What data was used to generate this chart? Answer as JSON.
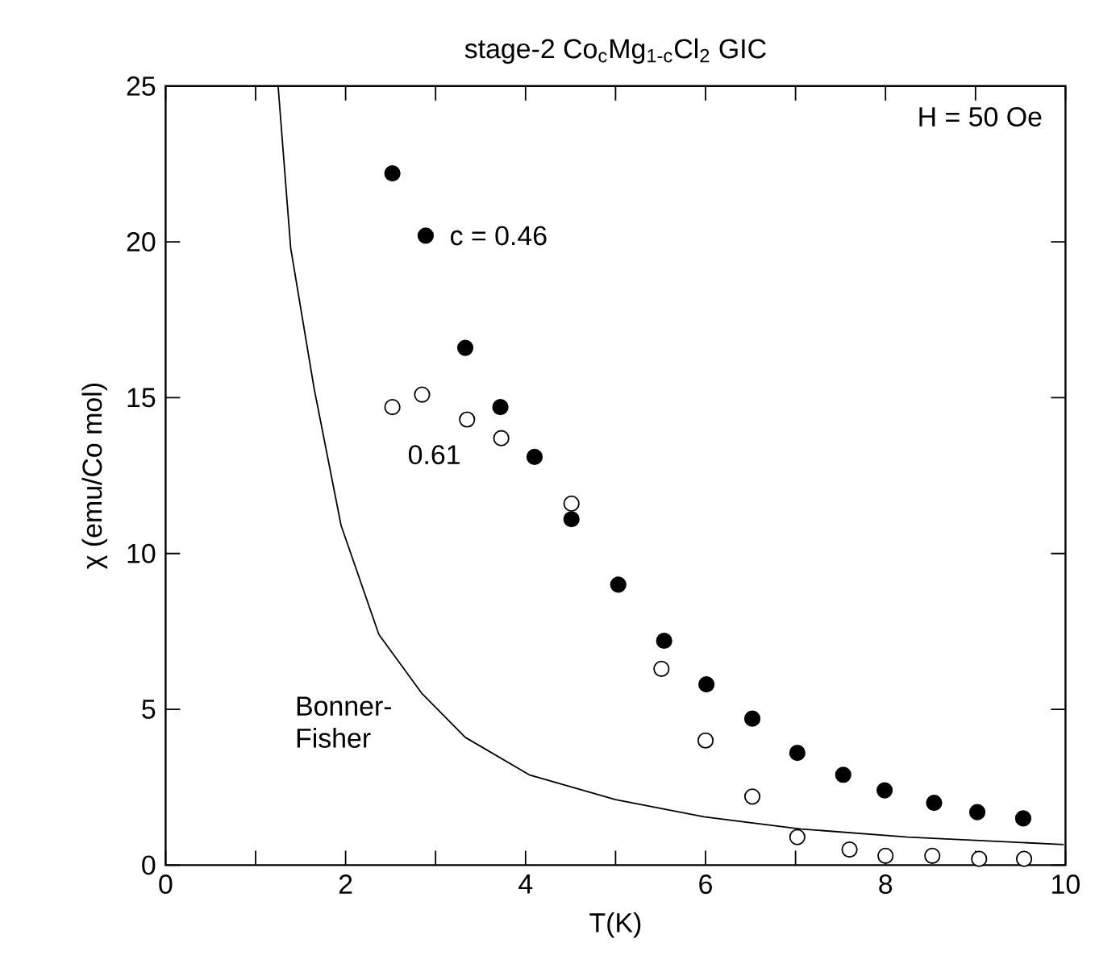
{
  "chart_data": {
    "type": "scatter",
    "title": "stage-2 Co$_{c}$Mg$_{1-c}$Cl$_{2}$ GIC",
    "xlabel": "T(K)",
    "ylabel": "χ (emu/Co mol)",
    "annotations": [
      "H = 50 Oe"
    ],
    "xlim": [
      0,
      10
    ],
    "ylim": [
      0,
      25
    ],
    "xticks": [
      0,
      {
        "value": 1,
        "label": null
      },
      2,
      {
        "value": 3,
        "label": null
      },
      4,
      {
        "value": 5,
        "label": null
      },
      6,
      {
        "value": 7,
        "label": null
      },
      8,
      {
        "value": 9,
        "label": null
      },
      10
    ],
    "yticks": [
      0,
      5,
      10,
      15,
      20,
      25
    ],
    "grid": false,
    "legend": false,
    "series": [
      {
        "name": "c = 0.46",
        "marker": "circle",
        "color": "#000000",
        "x": [
          2.52,
          2.89,
          3.33,
          3.72,
          4.1,
          4.51,
          5.03,
          5.54,
          6.01,
          6.52,
          7.02,
          7.53,
          7.99,
          8.54,
          9.02,
          9.53
        ],
        "values": [
          22.2,
          20.2,
          16.6,
          14.7,
          13.1,
          11.1,
          9.0,
          7.2,
          5.8,
          4.7,
          3.6,
          2.9,
          2.4,
          2.0,
          1.7,
          1.5
        ]
      },
      {
        "name": "0.61",
        "marker": "circle",
        "color": "#000000",
        "x": [
          2.52,
          2.85,
          3.35,
          3.73,
          4.51,
          5.51,
          6.0,
          6.52,
          7.02,
          7.6,
          8.0,
          8.52,
          9.04,
          9.54
        ],
        "values": [
          14.7,
          15.1,
          14.3,
          13.7,
          11.6,
          6.3,
          4.0,
          2.2,
          0.9,
          0.5,
          0.3,
          0.3,
          0.2,
          0.2
        ]
      },
      {
        "name": "Bonner-Fisher",
        "type": "line",
        "marker": "none",
        "color": "#000000",
        "line_style": "solid",
        "x": [
          1.25,
          1.39,
          1.65,
          1.95,
          2.37,
          2.85,
          3.33,
          4.04,
          5.0,
          5.98,
          7.06,
          8.25,
          9.98
        ],
        "values": [
          25,
          19.8,
          15.3,
          10.9,
          7.4,
          5.5,
          4.1,
          2.9,
          2.1,
          1.55,
          1.16,
          0.9,
          0.66
        ]
      }
    ]
  }
}
